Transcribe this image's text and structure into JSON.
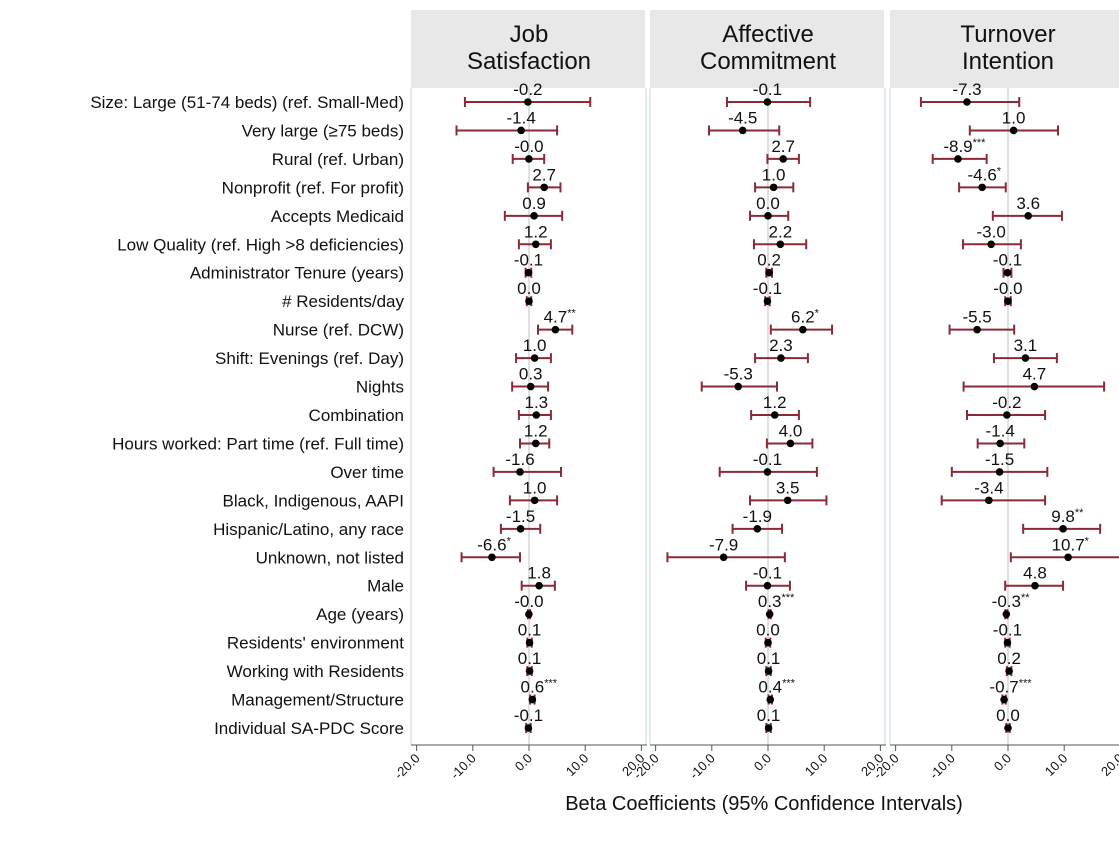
{
  "chart_data": {
    "type": "coefficient",
    "xlabel": "Beta Coefficients (95% Confidence Intervals)",
    "categories": [
      "Size: Large (51-74 beds) (ref. Small-Med)",
      "Very large (≥75 beds)",
      "Rural (ref. Urban)",
      "Nonprofit (ref. For profit)",
      "Accepts Medicaid",
      "Low Quality (ref. High >8 deficiencies)",
      "Administrator Tenure (years)",
      "# Residents/day",
      "Nurse (ref. DCW)",
      "Shift: Evenings (ref. Day)",
      "Nights",
      "Combination",
      "Hours worked: Part time (ref. Full time)",
      "Over time",
      "Black, Indigenous, AAPI",
      "Hispanic/Latino, any race",
      "Unknown, not listed",
      "Male",
      "Age (years)",
      "Residents' environment",
      "Working with Residents",
      "Management/Structure",
      "Individual SA-PDC Score"
    ],
    "xlim": [
      -21,
      21
    ],
    "xticks": [
      {
        "value": -20,
        "label": "-20.0"
      },
      {
        "value": -10,
        "label": "-10.0"
      },
      {
        "value": 0,
        "label": "0.0"
      },
      {
        "value": 10,
        "label": "10.0"
      },
      {
        "value": 20,
        "label": "20.0"
      }
    ],
    "xline": 0,
    "color": "#8b2a35",
    "point_color": "#000000",
    "panels": [
      {
        "title": [
          "Job",
          "Satisfaction"
        ],
        "values": [
          -0.2,
          -1.4,
          -0.02,
          2.7,
          0.9,
          1.2,
          -0.1,
          0.0,
          4.7,
          1.0,
          0.3,
          1.3,
          1.2,
          -1.6,
          1.0,
          -1.5,
          -6.6,
          1.8,
          -0.02,
          0.1,
          0.1,
          0.6,
          -0.1
        ],
        "value_labels": [
          "-0.2",
          "-1.4",
          "-0.0",
          "2.7",
          "0.9",
          "1.2",
          "-0.1",
          "0.0",
          "4.7",
          "1.0",
          "0.3",
          "1.3",
          "1.2",
          "-1.6",
          "1.0",
          "-1.5",
          "-6.6",
          "1.8",
          "-0.0",
          "0.1",
          "0.1",
          "0.6",
          "-0.1"
        ],
        "significance": [
          null,
          null,
          null,
          null,
          null,
          null,
          null,
          null,
          "**",
          null,
          null,
          null,
          null,
          null,
          null,
          null,
          "*",
          null,
          null,
          null,
          null,
          "***",
          null
        ],
        "lower": [
          -11.4,
          -12.9,
          -2.9,
          -0.2,
          -4.3,
          -1.8,
          -0.6,
          -0.4,
          1.6,
          -2.3,
          -3.0,
          -1.8,
          -1.6,
          -6.3,
          -3.4,
          -5.0,
          -12.0,
          -1.3,
          -0.2,
          -0.3,
          -0.3,
          0.2,
          -0.5
        ],
        "upper": [
          10.9,
          5.0,
          2.7,
          5.6,
          5.9,
          3.9,
          0.4,
          0.4,
          7.7,
          3.9,
          3.4,
          3.9,
          3.6,
          5.7,
          5.0,
          2.0,
          -1.6,
          4.6,
          0.2,
          0.5,
          0.5,
          1.0,
          0.3
        ]
      },
      {
        "title": [
          "Affective",
          "Commitment"
        ],
        "values": [
          -0.1,
          -4.5,
          2.7,
          1.0,
          0.0,
          2.2,
          0.2,
          -0.1,
          6.2,
          2.3,
          -5.3,
          1.2,
          4.0,
          -0.1,
          3.5,
          -1.9,
          -7.9,
          -0.1,
          0.3,
          0.0,
          0.1,
          0.4,
          0.1
        ],
        "value_labels": [
          "-0.1",
          "-4.5",
          "2.7",
          "1.0",
          "0.0",
          "2.2",
          "0.2",
          "-0.1",
          "6.2",
          "2.3",
          "-5.3",
          "1.2",
          "4.0",
          "-0.1",
          "3.5",
          "-1.9",
          "-7.9",
          "-0.1",
          "0.3",
          "0.0",
          "0.1",
          "0.4",
          "0.1"
        ],
        "significance": [
          null,
          null,
          null,
          null,
          null,
          null,
          null,
          null,
          "*",
          null,
          null,
          null,
          null,
          null,
          null,
          null,
          null,
          null,
          "***",
          null,
          null,
          "***",
          null
        ],
        "lower": [
          -7.3,
          -10.5,
          -0.1,
          -2.3,
          -3.2,
          -2.5,
          -0.3,
          -0.5,
          0.5,
          -2.3,
          -11.8,
          -3.0,
          -0.2,
          -8.6,
          -3.2,
          -6.3,
          -17.9,
          -3.9,
          0.1,
          -0.4,
          -0.3,
          0.1,
          -0.3
        ],
        "upper": [
          7.5,
          2.0,
          5.5,
          4.5,
          3.6,
          6.8,
          0.7,
          0.3,
          11.4,
          7.1,
          1.6,
          5.5,
          7.9,
          8.7,
          10.4,
          2.5,
          3.0,
          3.9,
          0.5,
          0.4,
          0.5,
          0.7,
          0.5
        ]
      },
      {
        "title": [
          "Turnover",
          "Intention"
        ],
        "values": [
          -7.3,
          1.0,
          -8.9,
          -4.6,
          3.6,
          -3.0,
          -0.1,
          -0.02,
          -5.5,
          3.1,
          4.7,
          -0.2,
          -1.4,
          -1.5,
          -3.4,
          9.8,
          10.7,
          4.8,
          -0.3,
          -0.1,
          0.2,
          -0.7,
          0.0
        ],
        "value_labels": [
          "-7.3",
          "1.0",
          "-8.9",
          "-4.6",
          "3.6",
          "-3.0",
          "-0.1",
          "-0.0",
          "-5.5",
          "3.1",
          "4.7",
          "-0.2",
          "-1.4",
          "-1.5",
          "-3.4",
          "9.8",
          "10.7",
          "4.8",
          "-0.3",
          "-0.1",
          "0.2",
          "-0.7",
          "0.0"
        ],
        "significance": [
          null,
          null,
          "***",
          "*",
          null,
          null,
          null,
          null,
          null,
          null,
          null,
          null,
          null,
          null,
          null,
          "**",
          "*",
          null,
          "**",
          null,
          null,
          "***",
          null
        ],
        "lower": [
          -15.5,
          -6.8,
          -13.4,
          -8.7,
          -2.7,
          -8.0,
          -0.8,
          -0.5,
          -10.4,
          -2.5,
          -7.9,
          -7.3,
          -5.4,
          -10.0,
          -11.8,
          2.7,
          0.5,
          -0.5,
          -0.5,
          -0.5,
          -0.2,
          -1.0,
          -0.3
        ],
        "upper": [
          2.0,
          8.9,
          -3.8,
          -0.4,
          9.6,
          2.3,
          0.6,
          0.5,
          1.1,
          8.7,
          17.1,
          6.6,
          2.9,
          7.0,
          6.6,
          16.4,
          21.0,
          9.8,
          -0.1,
          0.3,
          0.6,
          -0.4,
          0.3
        ]
      }
    ]
  }
}
